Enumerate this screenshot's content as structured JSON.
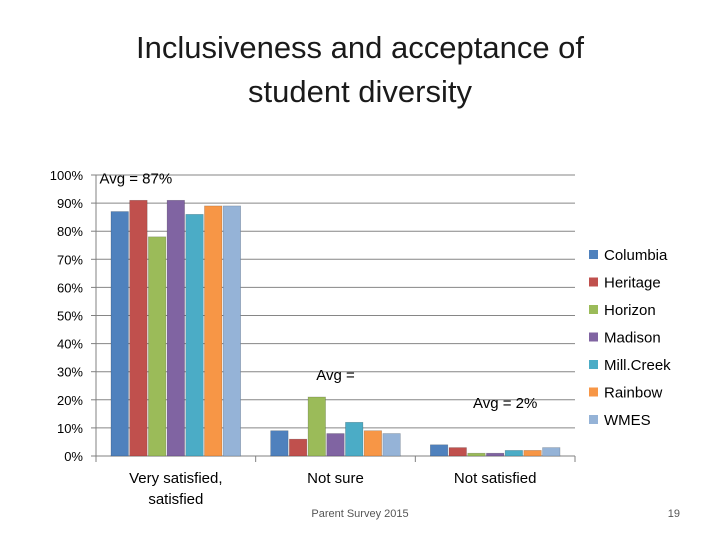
{
  "slide": {
    "title_line1": "Inclusiveness and acceptance of",
    "title_line2": "student diversity",
    "footer": "Parent Survey 2015",
    "page_number": "19"
  },
  "chart_data": {
    "type": "bar",
    "title": "Inclusiveness and acceptance of student diversity",
    "categories": [
      "Very satisfied, satisfied",
      "Not sure",
      "Not satisfied"
    ],
    "category_lines": [
      [
        "Very satisfied,",
        "satisfied"
      ],
      [
        "Not sure"
      ],
      [
        "Not satisfied"
      ]
    ],
    "ylim": [
      0,
      100
    ],
    "yticks": [
      0,
      10,
      20,
      30,
      40,
      50,
      60,
      70,
      80,
      90,
      100
    ],
    "ytick_labels": [
      "0%",
      "10%",
      "20%",
      "30%",
      "40%",
      "50%",
      "60%",
      "70%",
      "80%",
      "90%",
      "100%"
    ],
    "grid": true,
    "legend_position": "right",
    "series": [
      {
        "name": "Columbia",
        "color": "#4f81bd",
        "values": [
          87,
          9,
          4
        ]
      },
      {
        "name": "Heritage",
        "color": "#c0504d",
        "values": [
          91,
          6,
          3
        ]
      },
      {
        "name": "Horizon",
        "color": "#9bbb59",
        "values": [
          78,
          21,
          1
        ]
      },
      {
        "name": "Madison",
        "color": "#8064a2",
        "values": [
          91,
          8,
          1
        ]
      },
      {
        "name": "Mill.Creek",
        "color": "#4bacc6",
        "values": [
          86,
          12,
          2
        ]
      },
      {
        "name": "Rainbow",
        "color": "#f79646",
        "values": [
          89,
          9,
          2
        ]
      },
      {
        "name": "WMES",
        "color": "#95b3d7",
        "values": [
          89,
          8,
          3
        ]
      }
    ],
    "annotations": [
      {
        "text": "Avg = 87%",
        "category_index": 0,
        "value": 97
      },
      {
        "text": "Avg =",
        "category_index": 1,
        "value": 27
      },
      {
        "text": "Avg = 2%",
        "category_index": 2,
        "value": 17
      }
    ]
  }
}
